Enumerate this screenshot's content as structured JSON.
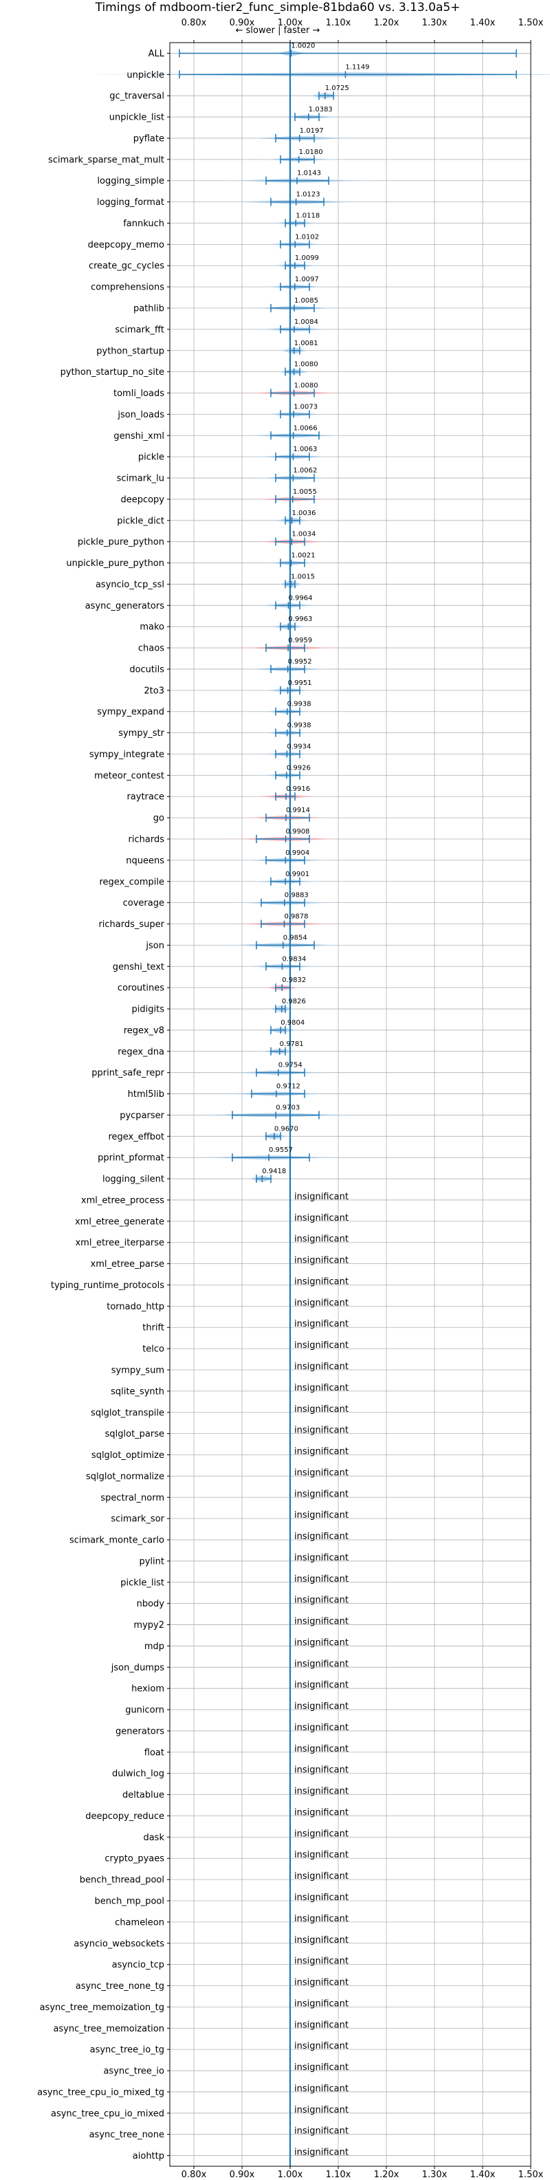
{
  "chart_data": {
    "type": "violin",
    "title": "Timings of mdboom-tier2_func_simple-81bda60 vs. 3.13.0a5+",
    "direction_label": "← slower | faster →",
    "xticks": [
      "0.80x",
      "0.90x",
      "1.00x",
      "1.10x",
      "1.20x",
      "1.30x",
      "1.40x",
      "1.50x"
    ],
    "xtick_values": [
      0.8,
      0.9,
      1.0,
      1.1,
      1.2,
      1.3,
      1.4,
      1.5
    ],
    "xlim": [
      0.75,
      1.5
    ],
    "grid": true,
    "reference_line": 1.0,
    "insignificant_label": "insignificant",
    "colors": {
      "normal": "#1f77b4",
      "normal_fill": "#a6c8e6",
      "slower_fill": "#f2a8ad",
      "reference": "#1f77b4"
    },
    "benchmarks": [
      {
        "name": "ALL",
        "value": 1.002,
        "label": "1.0020",
        "lo": 0.77,
        "hi": 1.47,
        "spread": 0.013,
        "slower": false
      },
      {
        "name": "unpickle",
        "value": 1.1149,
        "label": "1.1149",
        "lo": 0.77,
        "hi": 1.47,
        "spread": 0.2,
        "slower": false
      },
      {
        "name": "gc_traversal",
        "value": 1.0725,
        "label": "1.0725",
        "lo": 1.06,
        "hi": 1.09,
        "spread": 0.014,
        "slower": false
      },
      {
        "name": "unpickle_list",
        "value": 1.0383,
        "label": "1.0383",
        "lo": 1.01,
        "hi": 1.06,
        "spread": 0.025,
        "slower": false
      },
      {
        "name": "pyflate",
        "value": 1.0197,
        "label": "1.0197",
        "lo": 0.97,
        "hi": 1.05,
        "spread": 0.045,
        "slower": false
      },
      {
        "name": "scimark_sparse_mat_mult",
        "value": 1.018,
        "label": "1.0180",
        "lo": 0.98,
        "hi": 1.05,
        "spread": 0.03,
        "slower": false
      },
      {
        "name": "logging_simple",
        "value": 1.0143,
        "label": "1.0143",
        "lo": 0.95,
        "hi": 1.08,
        "spread": 0.06,
        "slower": false
      },
      {
        "name": "logging_format",
        "value": 1.0123,
        "label": "1.0123",
        "lo": 0.96,
        "hi": 1.07,
        "spread": 0.055,
        "slower": false
      },
      {
        "name": "fannkuch",
        "value": 1.0118,
        "label": "1.0118",
        "lo": 0.99,
        "hi": 1.03,
        "spread": 0.02,
        "slower": false
      },
      {
        "name": "deepcopy_memo",
        "value": 1.0102,
        "label": "1.0102",
        "lo": 0.98,
        "hi": 1.04,
        "spread": 0.025,
        "slower": false
      },
      {
        "name": "create_gc_cycles",
        "value": 1.0099,
        "label": "1.0099",
        "lo": 0.99,
        "hi": 1.03,
        "spread": 0.02,
        "slower": false
      },
      {
        "name": "comprehensions",
        "value": 1.0097,
        "label": "1.0097",
        "lo": 0.98,
        "hi": 1.04,
        "spread": 0.025,
        "slower": false
      },
      {
        "name": "pathlib",
        "value": 1.0085,
        "label": "1.0085",
        "lo": 0.96,
        "hi": 1.05,
        "spread": 0.035,
        "slower": false
      },
      {
        "name": "scimark_fft",
        "value": 1.0084,
        "label": "1.0084",
        "lo": 0.98,
        "hi": 1.04,
        "spread": 0.03,
        "slower": false
      },
      {
        "name": "python_startup",
        "value": 1.0081,
        "label": "1.0081",
        "lo": 1.0,
        "hi": 1.02,
        "spread": 0.012,
        "slower": false
      },
      {
        "name": "python_startup_no_site",
        "value": 1.008,
        "label": "1.0080",
        "lo": 0.99,
        "hi": 1.02,
        "spread": 0.014,
        "slower": false
      },
      {
        "name": "tomli_loads",
        "value": 1.008,
        "label": "1.0080",
        "lo": 0.96,
        "hi": 1.05,
        "spread": 0.04,
        "slower": true
      },
      {
        "name": "json_loads",
        "value": 1.0073,
        "label": "1.0073",
        "lo": 0.98,
        "hi": 1.04,
        "spread": 0.025,
        "slower": false
      },
      {
        "name": "genshi_xml",
        "value": 1.0066,
        "label": "1.0066",
        "lo": 0.96,
        "hi": 1.06,
        "spread": 0.04,
        "slower": false
      },
      {
        "name": "pickle",
        "value": 1.0063,
        "label": "1.0063",
        "lo": 0.97,
        "hi": 1.04,
        "spread": 0.03,
        "slower": false
      },
      {
        "name": "scimark_lu",
        "value": 1.0062,
        "label": "1.0062",
        "lo": 0.97,
        "hi": 1.05,
        "spread": 0.03,
        "slower": false
      },
      {
        "name": "deepcopy",
        "value": 1.0055,
        "label": "1.0055",
        "lo": 0.97,
        "hi": 1.05,
        "spread": 0.03,
        "slower": true
      },
      {
        "name": "pickle_dict",
        "value": 1.0036,
        "label": "1.0036",
        "lo": 0.99,
        "hi": 1.02,
        "spread": 0.015,
        "slower": false
      },
      {
        "name": "pickle_pure_python",
        "value": 1.0034,
        "label": "1.0034",
        "lo": 0.97,
        "hi": 1.03,
        "spread": 0.03,
        "slower": true
      },
      {
        "name": "unpickle_pure_python",
        "value": 1.0021,
        "label": "1.0021",
        "lo": 0.98,
        "hi": 1.03,
        "spread": 0.02,
        "slower": false
      },
      {
        "name": "asyncio_tcp_ssl",
        "value": 1.0015,
        "label": "1.0015",
        "lo": 0.99,
        "hi": 1.01,
        "spread": 0.01,
        "slower": false
      },
      {
        "name": "async_generators",
        "value": 0.9964,
        "label": "0.9964",
        "lo": 0.97,
        "hi": 1.02,
        "spread": 0.025,
        "slower": false
      },
      {
        "name": "mako",
        "value": 0.9963,
        "label": "0.9963",
        "lo": 0.98,
        "hi": 1.01,
        "spread": 0.015,
        "slower": false
      },
      {
        "name": "chaos",
        "value": 0.9959,
        "label": "0.9959",
        "lo": 0.95,
        "hi": 1.03,
        "spread": 0.04,
        "slower": true
      },
      {
        "name": "docutils",
        "value": 0.9952,
        "label": "0.9952",
        "lo": 0.96,
        "hi": 1.03,
        "spread": 0.035,
        "slower": false
      },
      {
        "name": "2to3",
        "value": 0.9951,
        "label": "0.9951",
        "lo": 0.98,
        "hi": 1.02,
        "spread": 0.02,
        "slower": false
      },
      {
        "name": "sympy_expand",
        "value": 0.9938,
        "label": "0.9938",
        "lo": 0.97,
        "hi": 1.02,
        "spread": 0.02,
        "slower": false
      },
      {
        "name": "sympy_str",
        "value": 0.9938,
        "label": "0.9938",
        "lo": 0.97,
        "hi": 1.02,
        "spread": 0.02,
        "slower": false
      },
      {
        "name": "sympy_integrate",
        "value": 0.9934,
        "label": "0.9934",
        "lo": 0.97,
        "hi": 1.02,
        "spread": 0.02,
        "slower": false
      },
      {
        "name": "meteor_contest",
        "value": 0.9926,
        "label": "0.9926",
        "lo": 0.97,
        "hi": 1.02,
        "spread": 0.02,
        "slower": false
      },
      {
        "name": "raytrace",
        "value": 0.9916,
        "label": "0.9916",
        "lo": 0.97,
        "hi": 1.01,
        "spread": 0.025,
        "slower": true
      },
      {
        "name": "go",
        "value": 0.9914,
        "label": "0.9914",
        "lo": 0.95,
        "hi": 1.04,
        "spread": 0.035,
        "slower": true
      },
      {
        "name": "richards",
        "value": 0.9908,
        "label": "0.9908",
        "lo": 0.93,
        "hi": 1.04,
        "spread": 0.045,
        "slower": true
      },
      {
        "name": "nqueens",
        "value": 0.9904,
        "label": "0.9904",
        "lo": 0.95,
        "hi": 1.03,
        "spread": 0.035,
        "slower": false
      },
      {
        "name": "regex_compile",
        "value": 0.9901,
        "label": "0.9901",
        "lo": 0.96,
        "hi": 1.02,
        "spread": 0.025,
        "slower": false
      },
      {
        "name": "coverage",
        "value": 0.9883,
        "label": "0.9883",
        "lo": 0.94,
        "hi": 1.03,
        "spread": 0.04,
        "slower": false
      },
      {
        "name": "richards_super",
        "value": 0.9878,
        "label": "0.9878",
        "lo": 0.94,
        "hi": 1.03,
        "spread": 0.04,
        "slower": true
      },
      {
        "name": "json",
        "value": 0.9854,
        "label": "0.9854",
        "lo": 0.93,
        "hi": 1.05,
        "spread": 0.05,
        "slower": false
      },
      {
        "name": "genshi_text",
        "value": 0.9834,
        "label": "0.9834",
        "lo": 0.95,
        "hi": 1.02,
        "spread": 0.03,
        "slower": false
      },
      {
        "name": "coroutines",
        "value": 0.9832,
        "label": "0.9832",
        "lo": 0.97,
        "hi": 1.0,
        "spread": 0.015,
        "slower": true
      },
      {
        "name": "pidigits",
        "value": 0.9826,
        "label": "0.9826",
        "lo": 0.97,
        "hi": 0.99,
        "spread": 0.01,
        "slower": false
      },
      {
        "name": "regex_v8",
        "value": 0.9804,
        "label": "0.9804",
        "lo": 0.96,
        "hi": 0.99,
        "spread": 0.015,
        "slower": false
      },
      {
        "name": "regex_dna",
        "value": 0.9781,
        "label": "0.9781",
        "lo": 0.96,
        "hi": 0.99,
        "spread": 0.015,
        "slower": false
      },
      {
        "name": "pprint_safe_repr",
        "value": 0.9754,
        "label": "0.9754",
        "lo": 0.93,
        "hi": 1.03,
        "spread": 0.04,
        "slower": false
      },
      {
        "name": "html5lib",
        "value": 0.9712,
        "label": "0.9712",
        "lo": 0.92,
        "hi": 1.03,
        "spread": 0.045,
        "slower": false
      },
      {
        "name": "pycparser",
        "value": 0.9703,
        "label": "0.9703",
        "lo": 0.88,
        "hi": 1.06,
        "spread": 0.07,
        "slower": false
      },
      {
        "name": "regex_effbot",
        "value": 0.967,
        "label": "0.9670",
        "lo": 0.95,
        "hi": 0.98,
        "spread": 0.012,
        "slower": false
      },
      {
        "name": "pprint_pformat",
        "value": 0.9557,
        "label": "0.9557",
        "lo": 0.88,
        "hi": 1.04,
        "spread": 0.06,
        "slower": false
      },
      {
        "name": "logging_silent",
        "value": 0.9418,
        "label": "0.9418",
        "lo": 0.93,
        "hi": 0.96,
        "spread": 0.012,
        "slower": false
      },
      {
        "name": "xml_etree_process",
        "insignificant": true
      },
      {
        "name": "xml_etree_generate",
        "insignificant": true
      },
      {
        "name": "xml_etree_iterparse",
        "insignificant": true
      },
      {
        "name": "xml_etree_parse",
        "insignificant": true
      },
      {
        "name": "typing_runtime_protocols",
        "insignificant": true
      },
      {
        "name": "tornado_http",
        "insignificant": true
      },
      {
        "name": "thrift",
        "insignificant": true
      },
      {
        "name": "telco",
        "insignificant": true
      },
      {
        "name": "sympy_sum",
        "insignificant": true
      },
      {
        "name": "sqlite_synth",
        "insignificant": true
      },
      {
        "name": "sqlglot_transpile",
        "insignificant": true
      },
      {
        "name": "sqlglot_parse",
        "insignificant": true
      },
      {
        "name": "sqlglot_optimize",
        "insignificant": true
      },
      {
        "name": "sqlglot_normalize",
        "insignificant": true
      },
      {
        "name": "spectral_norm",
        "insignificant": true
      },
      {
        "name": "scimark_sor",
        "insignificant": true
      },
      {
        "name": "scimark_monte_carlo",
        "insignificant": true
      },
      {
        "name": "pylint",
        "insignificant": true
      },
      {
        "name": "pickle_list",
        "insignificant": true
      },
      {
        "name": "nbody",
        "insignificant": true
      },
      {
        "name": "mypy2",
        "insignificant": true
      },
      {
        "name": "mdp",
        "insignificant": true
      },
      {
        "name": "json_dumps",
        "insignificant": true
      },
      {
        "name": "hexiom",
        "insignificant": true
      },
      {
        "name": "gunicorn",
        "insignificant": true
      },
      {
        "name": "generators",
        "insignificant": true
      },
      {
        "name": "float",
        "insignificant": true
      },
      {
        "name": "dulwich_log",
        "insignificant": true
      },
      {
        "name": "deltablue",
        "insignificant": true
      },
      {
        "name": "deepcopy_reduce",
        "insignificant": true
      },
      {
        "name": "dask",
        "insignificant": true
      },
      {
        "name": "crypto_pyaes",
        "insignificant": true
      },
      {
        "name": "bench_thread_pool",
        "insignificant": true
      },
      {
        "name": "bench_mp_pool",
        "insignificant": true
      },
      {
        "name": "chameleon",
        "insignificant": true
      },
      {
        "name": "asyncio_websockets",
        "insignificant": true
      },
      {
        "name": "asyncio_tcp",
        "insignificant": true
      },
      {
        "name": "async_tree_none_tg",
        "insignificant": true
      },
      {
        "name": "async_tree_memoization_tg",
        "insignificant": true
      },
      {
        "name": "async_tree_memoization",
        "insignificant": true
      },
      {
        "name": "async_tree_io_tg",
        "insignificant": true
      },
      {
        "name": "async_tree_io",
        "insignificant": true
      },
      {
        "name": "async_tree_cpu_io_mixed_tg",
        "insignificant": true
      },
      {
        "name": "async_tree_cpu_io_mixed",
        "insignificant": true
      },
      {
        "name": "async_tree_none",
        "insignificant": true
      },
      {
        "name": "aiohttp",
        "insignificant": true
      }
    ]
  }
}
